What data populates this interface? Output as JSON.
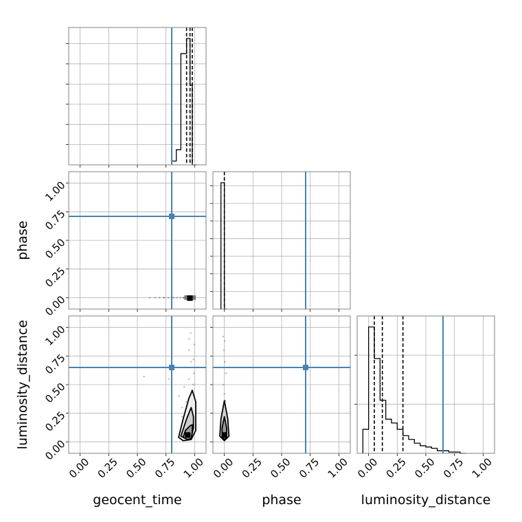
{
  "chart_data": {
    "type": "corner",
    "parameters": [
      "geocent_time",
      "phase",
      "luminosity_distance"
    ],
    "truths": {
      "geocent_time": 0.8,
      "phase": 0.71,
      "luminosity_distance": 0.65
    },
    "truth_color": "#4682b4",
    "grid": true,
    "tick_labels": [
      "0.00",
      "0.25",
      "0.50",
      "0.75",
      "1.00"
    ],
    "axis_range": [
      -0.1,
      1.1
    ],
    "diagonal_histograms": [
      {
        "parameter": "geocent_time",
        "bin_edges": [
          0.8,
          0.84,
          0.88,
          0.93,
          0.96,
          0.98,
          1.02
        ],
        "counts": [
          0.03,
          0.12,
          0.88,
          1.0,
          0.63,
          0.0
        ],
        "quantiles": [
          0.93,
          0.96,
          0.98
        ]
      },
      {
        "parameter": "phase",
        "bin_edges": [
          -0.03,
          0.0,
          0.02
        ],
        "counts": [
          1.0,
          0.0
        ],
        "quantiles": [
          0.0
        ]
      },
      {
        "parameter": "luminosity_distance",
        "bin_edges": [
          -0.05,
          0.0,
          0.05,
          0.1,
          0.15,
          0.2,
          0.25,
          0.3,
          0.35,
          0.4,
          0.45,
          0.5,
          0.55,
          0.6,
          0.65,
          0.7,
          0.75,
          0.8,
          0.85
        ],
        "counts": [
          0.19,
          1.0,
          0.75,
          0.42,
          0.27,
          0.24,
          0.19,
          0.14,
          0.11,
          0.08,
          0.06,
          0.05,
          0.04,
          0.02,
          0.02,
          0.01,
          0.01,
          0.0
        ],
        "quantiles": [
          0.05,
          0.12,
          0.3
        ]
      }
    ],
    "scatter_panels": [
      {
        "x": "geocent_time",
        "y": "phase",
        "samples_x": [
          0.62,
          0.66,
          0.69,
          0.72,
          0.74,
          0.77,
          0.8,
          0.83,
          0.85,
          0.87,
          0.89,
          0.91,
          0.93,
          0.94,
          0.95,
          0.96,
          0.97,
          0.98,
          0.99,
          1.0
        ],
        "samples_y": [
          0.0,
          0.0,
          0.0,
          0.0,
          0.0,
          0.0,
          0.0,
          0.0,
          0.0,
          0.0,
          0.0,
          0.0,
          0.0,
          0.0,
          0.0,
          0.0,
          0.0,
          0.0,
          0.0,
          0.0
        ],
        "core": {
          "x": [
            0.91,
            1.01
          ],
          "y": [
            -0.02,
            0.02
          ]
        }
      },
      {
        "x": "geocent_time",
        "y": "luminosity_distance",
        "samples_x": [
          0.57,
          0.78,
          0.86,
          0.88,
          0.9,
          0.91,
          0.92,
          0.93,
          0.93,
          0.94,
          0.94,
          0.95,
          0.95,
          0.96,
          0.96,
          0.97,
          0.97,
          0.98,
          0.98,
          0.99,
          0.99,
          1.0,
          0.95,
          0.97,
          0.93,
          0.96,
          0.99,
          0.98
        ],
        "samples_y": [
          0.57,
          0.55,
          0.4,
          0.3,
          0.22,
          0.48,
          0.12,
          0.65,
          0.35,
          0.05,
          0.8,
          0.25,
          0.55,
          0.7,
          0.15,
          0.95,
          0.45,
          0.6,
          0.08,
          0.3,
          0.85,
          0.5,
          0.02,
          0.38,
          0.18,
          0.9,
          0.72,
          0.2
        ],
        "contours": [
          {
            "x": [
              0.9,
              0.94,
              0.97,
              0.98,
              0.98,
              0.96,
              0.92,
              0.9
            ],
            "y": [
              0.04,
              0.02,
              0.03,
              0.08,
              0.15,
              0.14,
              0.1,
              0.04
            ]
          },
          {
            "x": [
              0.88,
              0.92,
              0.97,
              0.99,
              0.99,
              0.97,
              0.93,
              0.88
            ],
            "y": [
              0.05,
              0.03,
              0.04,
              0.12,
              0.22,
              0.3,
              0.2,
              0.05
            ]
          },
          {
            "x": [
              0.86,
              0.9,
              0.97,
              1.01,
              1.01,
              0.98,
              0.95,
              0.9,
              0.86
            ],
            "y": [
              0.04,
              0.01,
              0.02,
              0.1,
              0.35,
              0.45,
              0.38,
              0.2,
              0.04
            ]
          }
        ],
        "density_peak": {
          "x": 0.94,
          "y": 0.06
        }
      },
      {
        "x": "phase",
        "y": "luminosity_distance",
        "samples_x": [
          0.0,
          0.0,
          0.0,
          0.0,
          0.0,
          0.0,
          0.0,
          0.0,
          0.0,
          0.0
        ],
        "samples_y": [
          0.92,
          0.8,
          0.7,
          0.6,
          0.5,
          0.42,
          0.36,
          0.02,
          0.3,
          0.88
        ],
        "contours": [
          {
            "x": [
              -0.02,
              0.0,
              0.02,
              0.02,
              0.0,
              -0.02,
              -0.02
            ],
            "y": [
              0.04,
              0.02,
              0.04,
              0.12,
              0.22,
              0.12,
              0.04
            ]
          },
          {
            "x": [
              -0.04,
              0.0,
              0.04,
              0.03,
              0.0,
              -0.03,
              -0.04
            ],
            "y": [
              0.05,
              0.01,
              0.05,
              0.2,
              0.36,
              0.2,
              0.05
            ]
          }
        ],
        "density_peak": {
          "x": 0.0,
          "y": 0.06
        }
      }
    ]
  }
}
